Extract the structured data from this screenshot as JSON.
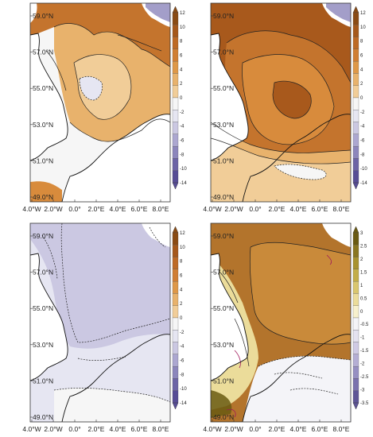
{
  "lat_labels": [
    "59.0°N",
    "57.0°N",
    "55.0°N",
    "53.0°N",
    "51.0°N",
    "49.0°N"
  ],
  "lon_labels": [
    "4.0°W",
    "2.0°W",
    "0.0°",
    "2.0°E",
    "4.0°E",
    "6.0°E",
    "8.0°E"
  ],
  "colorbar_main": {
    "ticks": [
      "12",
      "10",
      "8",
      "6",
      "4",
      "2",
      "0",
      "-2",
      "-4",
      "-6",
      "-8",
      "-10",
      "-14"
    ],
    "colors": [
      "#8a4b14",
      "#a5581b",
      "#bd6a25",
      "#d07e33",
      "#de9848",
      "#e8b26c",
      "#f1cd98",
      "#f6f6f6",
      "#e6e6f2",
      "#cbc8e2",
      "#aca7d0",
      "#8c86bc",
      "#6c64a6",
      "#574d95"
    ]
  },
  "colorbar_diff": {
    "ticks": [
      "3",
      "2.5",
      "2",
      "1.5",
      "1",
      "0.5",
      "0",
      "-0.5",
      "-1",
      "-1.5",
      "-2",
      "-2.5",
      "-3",
      "-3.5"
    ],
    "colors": [
      "#6a5a12",
      "#8a7620",
      "#a8922e",
      "#c3ad48",
      "#d9c66e",
      "#ebdc9a",
      "#f7f0cc",
      "#f4f4f8",
      "#e4e2f0",
      "#cfcae4",
      "#b4aed4",
      "#968fc2",
      "#7a71ae",
      "#5e5596"
    ]
  },
  "panels": [
    {
      "id": "top-left",
      "colorbar": "main",
      "sea_color": "#f6f6f6",
      "regions": [
        {
          "label": "north",
          "color": "#c4742d"
        },
        {
          "label": "central",
          "color": "#e8b26c"
        },
        {
          "label": "inner",
          "color": "#f1cd98"
        },
        {
          "label": "negative",
          "color": "#e6e6f2"
        },
        {
          "label": "south-coast",
          "color": "#d88b3c"
        }
      ]
    },
    {
      "id": "top-right",
      "colorbar": "main",
      "sea_color": "#a8591c",
      "regions": [
        {
          "label": "outer",
          "color": "#a8591c"
        },
        {
          "label": "band1",
          "color": "#c4742d"
        },
        {
          "label": "band2",
          "color": "#d88b3c"
        },
        {
          "label": "band3",
          "color": "#e8b26c"
        },
        {
          "label": "south",
          "color": "#f1cd98"
        },
        {
          "label": "channel",
          "color": "#f6f6f6"
        }
      ]
    },
    {
      "id": "bottom-left",
      "colorbar": "main",
      "sea_color": "#cbc8e2",
      "regions": [
        {
          "label": "main",
          "color": "#cbc8e2"
        },
        {
          "label": "coastal",
          "color": "#e6e6f2"
        },
        {
          "label": "channel",
          "color": "#f6f6f6"
        }
      ]
    },
    {
      "id": "bottom-right",
      "colorbar": "diff",
      "sea_color": "#b3742c",
      "regions": [
        {
          "label": "main",
          "color": "#b3742c"
        },
        {
          "label": "inner",
          "color": "#c98a3a"
        },
        {
          "label": "coastal",
          "color": "#ebdc9a"
        },
        {
          "label": "channel",
          "color": "#f4f4f8"
        }
      ]
    }
  ],
  "land_color": "#ffffff"
}
